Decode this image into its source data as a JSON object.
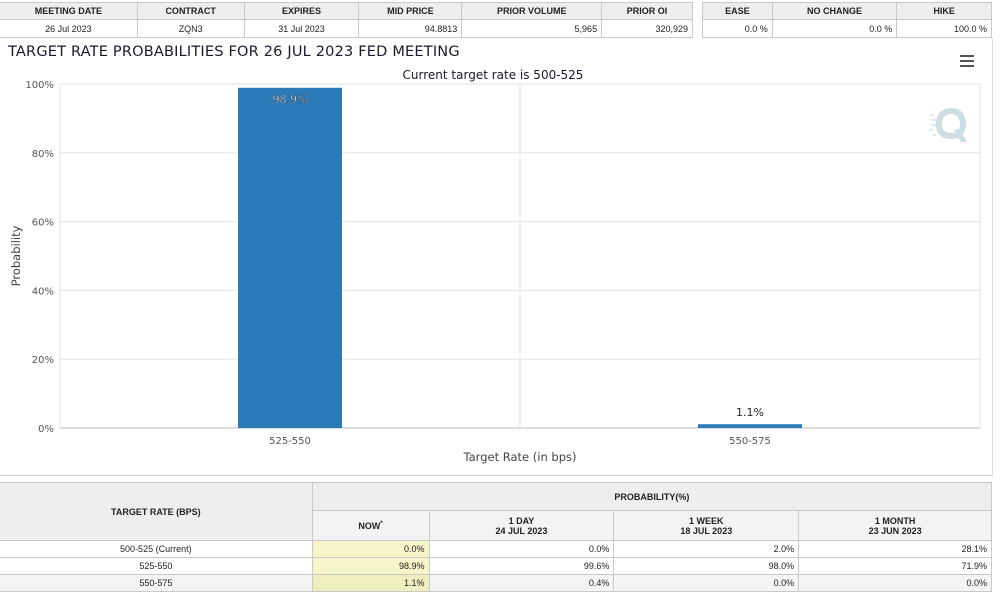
{
  "info_table": {
    "headers": [
      "MEETING DATE",
      "CONTRACT",
      "EXPIRES",
      "MID PRICE",
      "PRIOR VOLUME",
      "PRIOR OI"
    ],
    "row": [
      "26 Jul 2023",
      "ZQN3",
      "31 Jul 2023",
      "94.8813",
      "5,965",
      "320,929"
    ]
  },
  "outcome_table": {
    "headers": [
      "EASE",
      "NO CHANGE",
      "HIKE"
    ],
    "row": [
      "0.0 %",
      "0.0 %",
      "100.0 %"
    ]
  },
  "chart": {
    "title": "TARGET RATE PROBABILITIES FOR 26 JUL 2023 FED MEETING",
    "subtitle": "Current target rate is 500-525"
  },
  "chart_data": {
    "type": "bar",
    "title": "TARGET RATE PROBABILITIES FOR 26 JUL 2023 FED MEETING",
    "subtitle": "Current target rate is 500-525",
    "categories": [
      "525-550",
      "550-575"
    ],
    "values": [
      98.9,
      1.1
    ],
    "data_labels": [
      "98.9%",
      "1.1%"
    ],
    "xlabel": "Target Rate (in bps)",
    "ylabel": "Probability",
    "ylim": [
      0,
      100
    ],
    "yticks": [
      "0%",
      "20%",
      "40%",
      "60%",
      "80%",
      "100%"
    ],
    "grid": true,
    "bar_color": "#2b7bb9"
  },
  "prob_table": {
    "rate_header": "TARGET RATE (BPS)",
    "prob_header": "PROBABILITY(%)",
    "cols": [
      {
        "label": "NOW",
        "sub": "",
        "mark": "*"
      },
      {
        "label": "1 DAY",
        "sub": "24 JUL 2023",
        "mark": ""
      },
      {
        "label": "1 WEEK",
        "sub": "18 JUL 2023",
        "mark": ""
      },
      {
        "label": "1 MONTH",
        "sub": "23 JUN 2023",
        "mark": ""
      }
    ],
    "rows": [
      {
        "rate": "500-525 (Current)",
        "values": [
          "0.0%",
          "0.0%",
          "2.0%",
          "28.1%"
        ]
      },
      {
        "rate": "525-550",
        "values": [
          "98.9%",
          "99.6%",
          "98.0%",
          "71.9%"
        ]
      },
      {
        "rate": "550-575",
        "values": [
          "1.1%",
          "0.4%",
          "0.0%",
          "0.0%"
        ]
      }
    ]
  },
  "icons": {
    "menu": "hamburger-menu-icon",
    "logo": "quikstrike-q-logo"
  }
}
